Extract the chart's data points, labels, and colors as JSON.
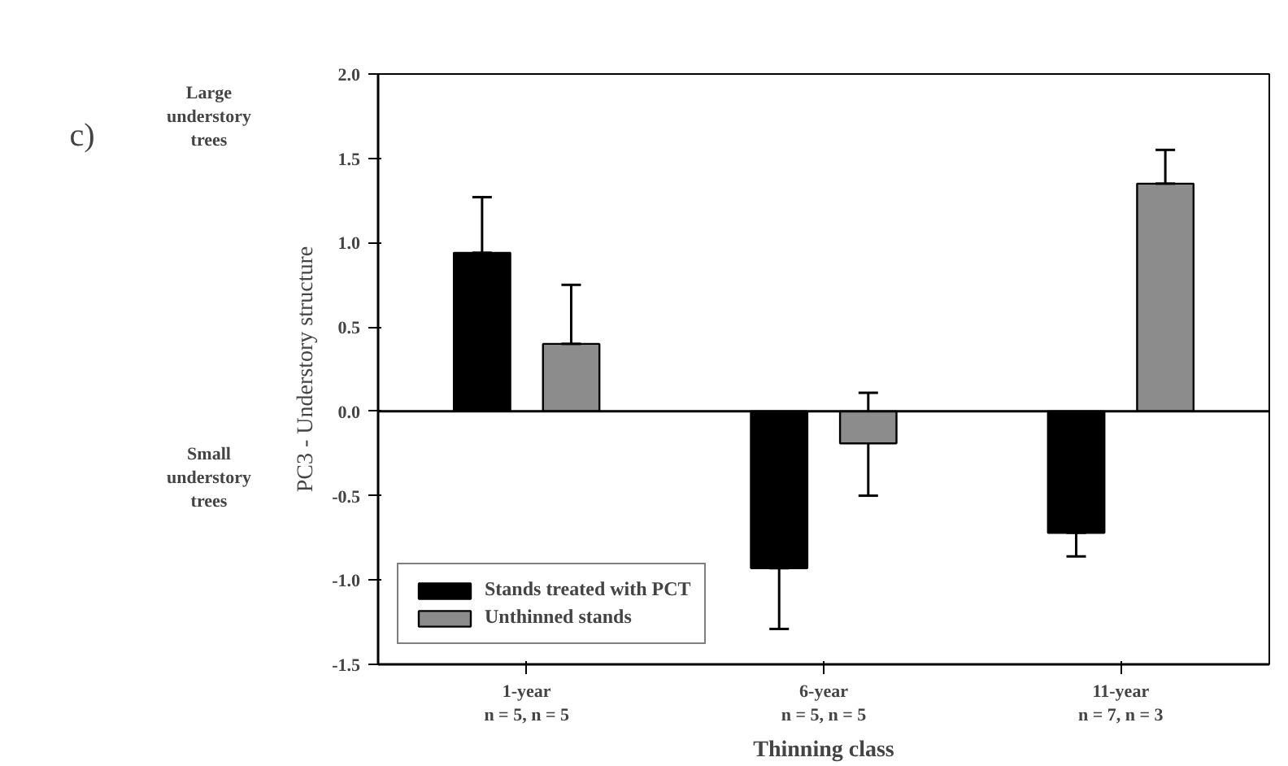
{
  "chart_data": {
    "type": "bar",
    "xlabel": "Thinning class",
    "ylabel": "PC3 - Understory structure",
    "categories": [
      "1-year\nn = 5, n = 5",
      "6-year\nn = 5, n = 5",
      "11-year\nn = 7, n = 3"
    ],
    "series": [
      {
        "name": "Stands treated with PCT",
        "color": "#000000",
        "values": [
          0.94,
          -0.93,
          -0.72
        ],
        "errors": [
          [
            0.94,
            1.27
          ],
          [
            -1.29,
            -0.93
          ],
          [
            -0.86,
            -0.72
          ]
        ]
      },
      {
        "name": "Unthinned stands",
        "color": "#8c8c8c",
        "values": [
          0.4,
          -0.19,
          1.35
        ],
        "errors": [
          [
            0.4,
            0.75
          ],
          [
            -0.5,
            0.11
          ],
          [
            1.35,
            1.55
          ]
        ]
      }
    ],
    "ylim": [
      -1.5,
      2.0
    ],
    "yticks": [
      {
        "value": -1.5,
        "label": "-1.5"
      },
      {
        "value": -1,
        "label": "-1.0"
      },
      {
        "value": -0.5,
        "label": "-0.5"
      },
      {
        "value": 0,
        "label": "0.0"
      },
      {
        "value": 0.5,
        "label": "0.5"
      },
      {
        "value": 1,
        "label": "1.0"
      },
      {
        "value": 1.5,
        "label": "1.5"
      },
      {
        "value": 2,
        "label": "2.0"
      }
    ],
    "ref_lines": [
      {
        "axis": "y",
        "value": 0
      }
    ],
    "annotations": [
      "c)",
      "Large\nunderstory\ntrees",
      "Small\nunderstory\ntrees"
    ],
    "legend": "bottom left",
    "grid": false
  }
}
